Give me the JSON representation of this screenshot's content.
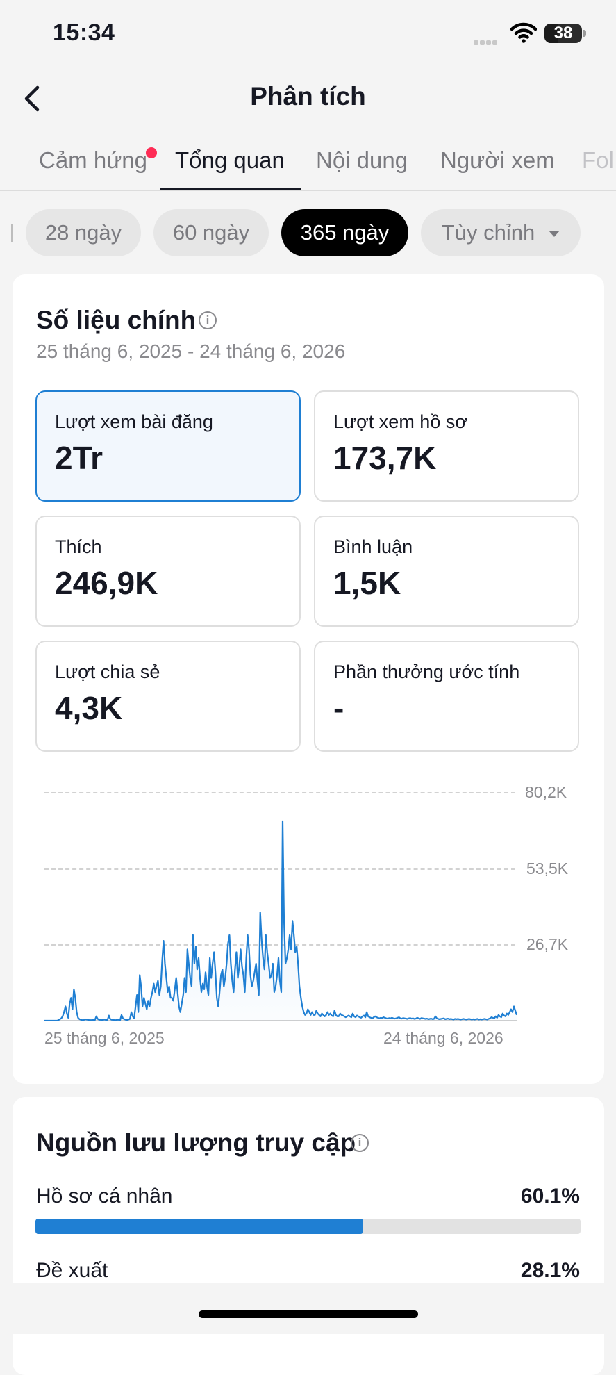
{
  "status_bar": {
    "time": "15:34",
    "battery": "38"
  },
  "header": {
    "title": "Phân tích",
    "back_icon": "chevron-left-icon"
  },
  "tabs": [
    {
      "label": "Cảm hứng",
      "active": false,
      "has_notification_dot": true
    },
    {
      "label": "Tổng quan",
      "active": true
    },
    {
      "label": "Nội dung",
      "active": false
    },
    {
      "label": "Người xem",
      "active": false
    },
    {
      "label": "Fol",
      "active": false
    }
  ],
  "periods": [
    {
      "label": "28 ngày",
      "active": false
    },
    {
      "label": "60 ngày",
      "active": false
    },
    {
      "label": "365 ngày",
      "active": true
    },
    {
      "label": "Tùy chỉnh",
      "active": false,
      "has_dropdown": true
    }
  ],
  "key_metrics": {
    "title": "Số liệu chính",
    "date_range": "25 tháng 6, 2025 - 24 tháng 6, 2026",
    "metrics": [
      {
        "label": "Lượt xem bài đăng",
        "value": "2Tr",
        "selected": true
      },
      {
        "label": "Lượt xem hồ sơ",
        "value": "173,7K"
      },
      {
        "label": "Thích",
        "value": "246,9K"
      },
      {
        "label": "Bình luận",
        "value": "1,5K"
      },
      {
        "label": "Lượt chia sẻ",
        "value": "4,3K"
      },
      {
        "label": "Phần thưởng ước tính",
        "value": "-"
      }
    ]
  },
  "chart_data": {
    "type": "area",
    "title": "",
    "xlabel": "",
    "ylabel": "",
    "x_start_label": "25 tháng 6, 2025",
    "x_end_label": "24 tháng 6, 2026",
    "y_tick_labels": [
      "80,2K",
      "53,5K",
      "26,7K"
    ],
    "y_ticks": [
      80200,
      53500,
      26700
    ],
    "ylim": [
      0,
      80200
    ],
    "color": "#1f7fd3",
    "series": [
      {
        "values": [
          0,
          0,
          0,
          0,
          0,
          0,
          0,
          0,
          0,
          0,
          200,
          500,
          800,
          1500,
          3000,
          5000,
          2500,
          1000,
          6000,
          8000,
          4000,
          11000,
          8000,
          3000,
          1000,
          500,
          300,
          200,
          200,
          500,
          400,
          300,
          200,
          200,
          200,
          300,
          200,
          1500,
          600,
          300,
          300,
          200,
          300,
          400,
          200,
          300,
          1800,
          500,
          300,
          300,
          200,
          200,
          300,
          300,
          200,
          2000,
          800,
          500,
          300,
          200,
          400,
          600,
          3000,
          1500,
          800,
          5000,
          9000,
          3000,
          16000,
          12000,
          5000,
          8000,
          6000,
          4000,
          7000,
          5000,
          8000,
          10000,
          13000,
          10000,
          12000,
          14000,
          9000,
          12000,
          21000,
          28000,
          20000,
          15000,
          10000,
          12000,
          8000,
          8000,
          7000,
          11000,
          15000,
          10000,
          5000,
          3000,
          6000,
          9000,
          15000,
          10000,
          25000,
          20000,
          15000,
          12000,
          30000,
          20000,
          26000,
          18000,
          22000,
          15000,
          10000,
          13000,
          11000,
          17000,
          12000,
          9000,
          22000,
          15000,
          20000,
          24000,
          17000,
          8000,
          5000,
          10000,
          16000,
          18000,
          12000,
          15000,
          20000,
          27000,
          30000,
          20000,
          14000,
          10000,
          18000,
          24000,
          15000,
          19000,
          25000,
          19000,
          16000,
          10000,
          22000,
          30000,
          25000,
          16000,
          12000,
          14000,
          17000,
          20000,
          14000,
          9000,
          38000,
          28000,
          22000,
          18000,
          30000,
          24000,
          20000,
          15000,
          16000,
          20000,
          10000,
          12000,
          16000,
          22000,
          14000,
          10000,
          70000,
          35000,
          20000,
          22000,
          25000,
          30000,
          25000,
          35000,
          30000,
          24000,
          26000,
          20000,
          12000,
          8000,
          5000,
          3000,
          2000,
          2500,
          4000,
          3000,
          2000,
          3000,
          2000,
          2000,
          3500,
          2500,
          2000,
          1500,
          2500,
          2000,
          1500,
          2000,
          3000,
          2000,
          2500,
          1800,
          1500,
          3500,
          2000,
          1500,
          1500,
          2500,
          2000,
          1800,
          1500,
          1200,
          1500,
          1800,
          1500,
          1200,
          2500,
          1500,
          1200,
          1800,
          1500,
          1200,
          1000,
          1500,
          1800,
          1200,
          3000,
          1500,
          1200,
          1000,
          800,
          1200,
          1500,
          1200,
          1000,
          800,
          1000,
          900,
          1200,
          1000,
          800,
          700,
          900,
          800,
          1000,
          800,
          700,
          800,
          1000,
          1200,
          800,
          700,
          900,
          800,
          700,
          600,
          800,
          900,
          700,
          800,
          600,
          700,
          1000,
          800,
          600,
          900,
          800,
          700,
          600,
          700,
          500,
          600,
          700,
          500,
          600,
          1500,
          800,
          600,
          500,
          600,
          700,
          800,
          500,
          600,
          700,
          500,
          600,
          500,
          400,
          600,
          500,
          600,
          500,
          400,
          500,
          600,
          500,
          400,
          500,
          600,
          500,
          400,
          500,
          400,
          500,
          600,
          400,
          500,
          400,
          500,
          600,
          500,
          400,
          600,
          800,
          1200,
          1000,
          800,
          1500,
          1000,
          2000,
          1500,
          1200,
          2500,
          1800,
          1500,
          2500,
          2000,
          3000,
          4000,
          3000,
          5000,
          3500,
          2000
        ]
      }
    ]
  },
  "traffic": {
    "title": "Nguồn lưu lượng truy cập",
    "sources": [
      {
        "label": "Hồ sơ cá nhân",
        "value": "60.1%",
        "pct": 60.1
      },
      {
        "label": "Đề xuất",
        "value": "28.1%",
        "pct": 28.1
      }
    ]
  }
}
